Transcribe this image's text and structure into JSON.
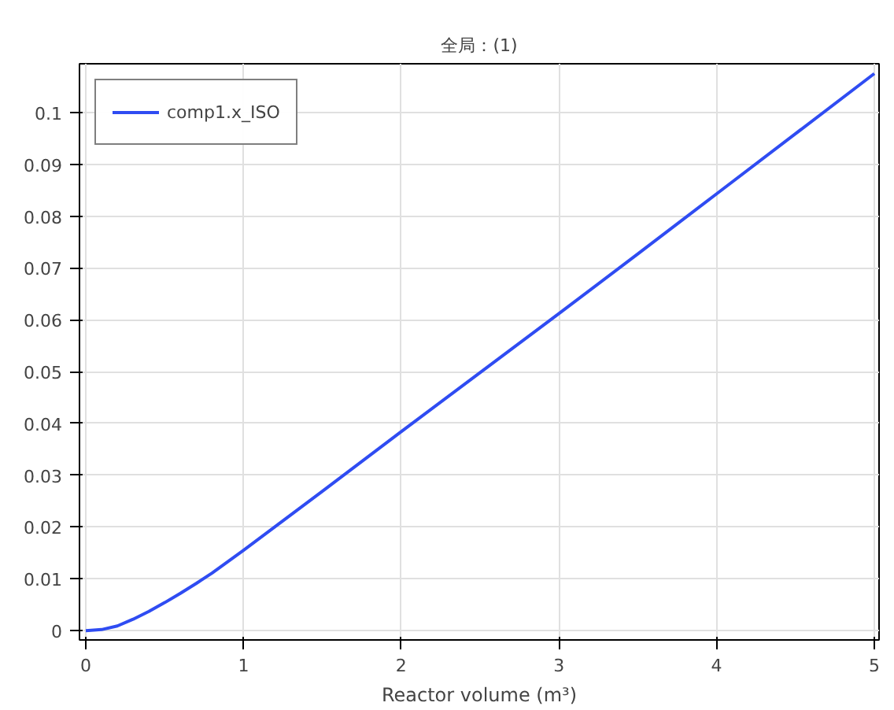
{
  "chart_data": {
    "type": "line",
    "title": "全局：(1)",
    "xlabel": "Reactor volume (m³)",
    "x": [
      0,
      0.1,
      0.2,
      0.3,
      0.4,
      0.5,
      0.6,
      0.7,
      0.8,
      0.9,
      1.0,
      1.25,
      1.5,
      2,
      2.5,
      3,
      3.5,
      4,
      4.5,
      5
    ],
    "series": [
      {
        "name": "comp1.x_ISO",
        "color": "#2f4cf2",
        "values": [
          0,
          0.0002,
          0.0009,
          0.0022,
          0.0037,
          0.0054,
          0.0072,
          0.0091,
          0.0111,
          0.0133,
          0.0155,
          0.0212,
          0.0269,
          0.0384,
          0.0498,
          0.0612,
          0.0727,
          0.0843,
          0.0959,
          0.1075
        ]
      }
    ],
    "xlim": [
      -0.04,
      5.03
    ],
    "ylim": [
      -0.0018,
      0.1094
    ],
    "xticks": [
      0,
      1,
      2,
      3,
      4,
      5
    ],
    "yticks": [
      0,
      0.01,
      0.02,
      0.03,
      0.04,
      0.05,
      0.06,
      0.07,
      0.08,
      0.09,
      0.1
    ],
    "grid": true,
    "legend": "top left",
    "line_style": "solid",
    "marker": "none"
  }
}
